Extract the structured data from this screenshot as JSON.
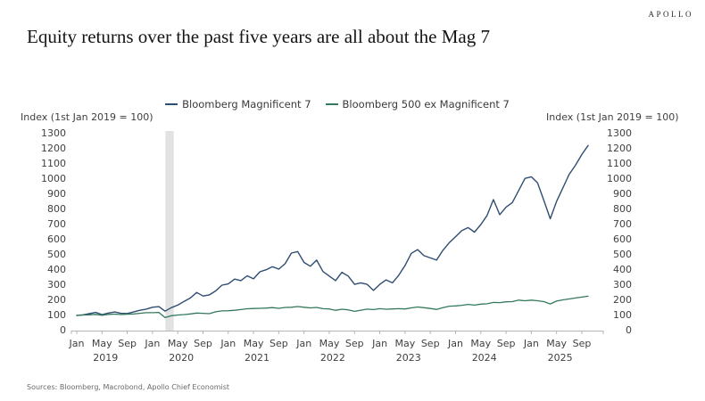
{
  "header": {
    "logo": "APOLLO",
    "title": "Equity returns over the past five years are all about the Mag 7"
  },
  "footer": {
    "sources": "Sources: Bloomberg, Macrobond, Apollo Chief Economist"
  },
  "chart_data": {
    "type": "line",
    "title": "Equity returns over the past five years are all about the Mag 7",
    "y_axis_label_left": "Index (1st Jan 2019 = 100)",
    "y_axis_label_right": "Index (1st Jan 2019 = 100)",
    "ylim": [
      0,
      1300
    ],
    "xlim": [
      2019.0,
      2025.95
    ],
    "y_ticks": [
      0,
      100,
      200,
      300,
      400,
      500,
      600,
      700,
      800,
      900,
      1000,
      1100,
      1200,
      1300
    ],
    "x_axis": {
      "years": [
        "2019",
        "2020",
        "2021",
        "2022",
        "2023",
        "2024",
        "2025"
      ],
      "month_tick_labels": [
        "Jan",
        "May",
        "Sep"
      ],
      "month_tick_positions": [
        0,
        0.3333,
        0.6667
      ]
    },
    "grid": false,
    "legend_position": "top-center",
    "axis_color": "#b5b5b5",
    "tick_label_color": "#3f3f3f",
    "recession_band": {
      "x_start": 2020.17,
      "x_end": 2020.28,
      "color": "#e2e2e2",
      "note": "Covid recession shading"
    },
    "frequency": "monthly",
    "x_start": 2019.0,
    "x_step_years": 0.0833333,
    "series": [
      {
        "name": "Bloomberg Magnificent 7",
        "color": "#2f4d71",
        "values": [
          100,
          104,
          112,
          120,
          106,
          116,
          123,
          114,
          113,
          123,
          134,
          142,
          154,
          158,
          128,
          152,
          168,
          193,
          215,
          252,
          228,
          236,
          262,
          300,
          308,
          340,
          330,
          362,
          342,
          388,
          402,
          422,
          406,
          442,
          512,
          522,
          450,
          425,
          465,
          390,
          360,
          330,
          385,
          360,
          305,
          315,
          305,
          265,
          305,
          335,
          315,
          365,
          430,
          510,
          535,
          495,
          480,
          465,
          530,
          580,
          620,
          660,
          680,
          650,
          700,
          760,
          865,
          765,
          815,
          845,
          925,
          1005,
          1015,
          975,
          858,
          738,
          852,
          942,
          1032,
          1092,
          1162,
          1222
        ]
      },
      {
        "name": "Bloomberg 500 ex Magnificent 7",
        "color": "#35795c",
        "values": [
          100,
          103,
          104,
          107,
          101,
          107,
          109,
          106,
          108,
          110,
          114,
          118,
          118,
          120,
          86,
          98,
          103,
          106,
          110,
          116,
          114,
          112,
          124,
          130,
          131,
          134,
          139,
          144,
          146,
          147,
          149,
          152,
          147,
          153,
          154,
          159,
          154,
          150,
          153,
          145,
          143,
          134,
          141,
          137,
          127,
          135,
          142,
          139,
          145,
          141,
          143,
          145,
          143,
          150,
          156,
          151,
          146,
          140,
          151,
          161,
          163,
          167,
          173,
          168,
          175,
          177,
          186,
          185,
          190,
          191,
          201,
          197,
          201,
          197,
          191,
          176,
          195,
          203,
          209,
          215,
          221,
          227
        ]
      }
    ]
  }
}
